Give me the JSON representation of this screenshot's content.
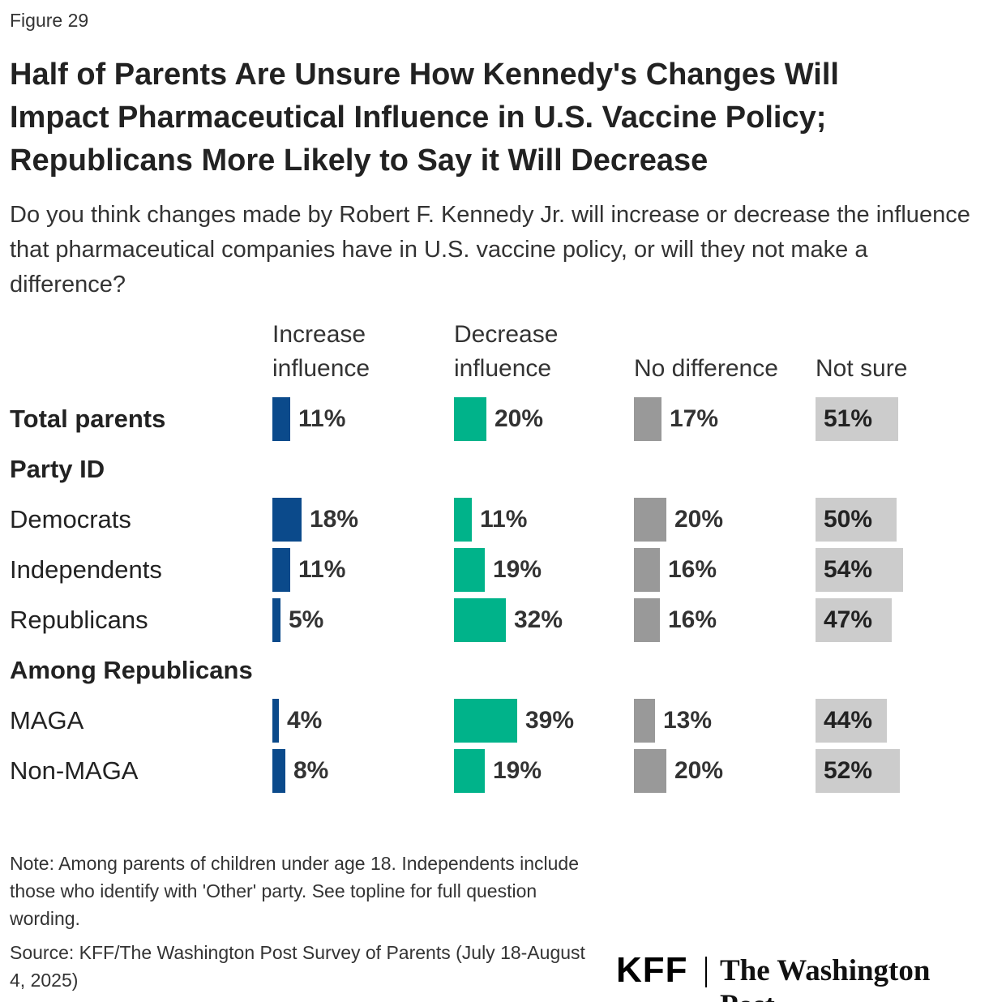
{
  "chart_data": {
    "type": "bar",
    "figure_label": "Figure 29",
    "title": "Half of Parents Are Unsure How Kennedy's Changes Will Impact Pharmaceutical Influence in U.S. Vaccine Policy; Republicans More Likely to Say it Will Decrease",
    "subtitle": "Do you think changes made by Robert F. Kennedy Jr. will increase or decrease the influence that pharmaceutical companies have in U.S. vaccine policy, or will they not make a difference?",
    "categories": [
      "Total parents",
      "Party ID",
      "Democrats",
      "Independents",
      "Republicans",
      "Among Republicans",
      "MAGA",
      "Non-MAGA"
    ],
    "series": [
      {
        "name": "Increase influence",
        "color": "#0b4a8b",
        "values": [
          11,
          null,
          18,
          11,
          5,
          null,
          4,
          8
        ],
        "value_labels": [
          "11%",
          null,
          "18%",
          "11%",
          "5%",
          null,
          "4%",
          "8%"
        ]
      },
      {
        "name": "Decrease influence",
        "color": "#00b38a",
        "values": [
          20,
          null,
          11,
          19,
          32,
          null,
          39,
          19
        ],
        "value_labels": [
          "20%",
          null,
          "11%",
          "19%",
          "32%",
          null,
          "39%",
          "19%"
        ]
      },
      {
        "name": "No difference",
        "color": "#999999",
        "values": [
          17,
          null,
          20,
          16,
          16,
          null,
          13,
          20
        ],
        "value_labels": [
          "17%",
          null,
          "20%",
          "16%",
          "16%",
          null,
          "13%",
          "20%"
        ]
      },
      {
        "name": "Not sure",
        "color": "#cccccc",
        "values": [
          51,
          null,
          50,
          54,
          47,
          null,
          44,
          52
        ],
        "value_labels": [
          "51%",
          null,
          "50%",
          "54%",
          "47%",
          null,
          "44%",
          "52%"
        ]
      }
    ],
    "note": "Note: Among parents of children under age 18. Independents include those who identify with 'Other' party. See topline for full question wording.",
    "source": "Source: KFF/The Washington Post Survey of Parents (July 18-August 4, 2025)",
    "logos": [
      "KFF",
      "The Washington Post"
    ]
  }
}
